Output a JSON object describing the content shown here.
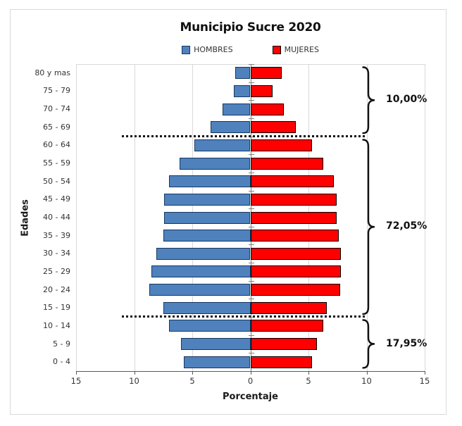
{
  "title": "Municipio Sucre 2020",
  "legend": {
    "items": [
      {
        "label": "HOMBRES",
        "color": "#4F81BD",
        "border": "#17375E"
      },
      {
        "label": "MUJERES",
        "color": "#FF0000",
        "border": "#000000"
      }
    ]
  },
  "chart_data": {
    "type": "bar",
    "variant": "population-pyramid",
    "title": "Municipio Sucre 2020",
    "xlabel": "Porcentaje",
    "ylabel": "Edades",
    "categories_top_to_bottom": [
      "80 y mas",
      "75 - 79",
      "70 - 74",
      "65 - 69",
      "60 - 64",
      "55 - 59",
      "50 - 54",
      "45 - 49",
      "40 - 44",
      "35 - 39",
      "30 - 34",
      "25 - 29",
      "20 - 24",
      "15 - 19",
      "10 - 14",
      "5 - 9",
      "0 - 4"
    ],
    "series": [
      {
        "name": "HOMBRES",
        "side": "left",
        "color": "#4F81BD",
        "border_color": "#17375E",
        "values": [
          1.3,
          1.4,
          2.4,
          3.4,
          4.8,
          6.1,
          7.0,
          7.4,
          7.4,
          7.5,
          8.1,
          8.5,
          8.7,
          7.5,
          7.0,
          6.0,
          5.7
        ]
      },
      {
        "name": "MUJERES",
        "side": "right",
        "color": "#FF0000",
        "border_color": "#000000",
        "values": [
          2.7,
          1.9,
          2.9,
          3.9,
          5.3,
          6.3,
          7.2,
          7.4,
          7.4,
          7.6,
          7.8,
          7.8,
          7.7,
          6.6,
          6.3,
          5.7,
          5.3
        ]
      }
    ],
    "x_axis": {
      "tick_labels": [
        "15",
        "10",
        "5",
        "0",
        "5",
        "10",
        "15"
      ],
      "tick_values": [
        -15,
        -10,
        -5,
        0,
        5,
        10,
        15
      ],
      "xlim": [
        -15,
        15
      ]
    },
    "grid": true,
    "legend_position": "top",
    "separators_after_row": [
      3,
      13
    ],
    "annotations": [
      {
        "label": "10,00%",
        "rows": [
          0,
          3
        ]
      },
      {
        "label": "72,05%",
        "rows": [
          4,
          13
        ]
      },
      {
        "label": "17,95%",
        "rows": [
          14,
          16
        ]
      }
    ]
  },
  "colors": {
    "grid": "#D9D9D9",
    "axis_line": "#595959",
    "center_axis": "#808080",
    "chart_border": "#D9D9D9",
    "separator": "#111111",
    "brace": "#111111",
    "background": "#FFFFFF"
  }
}
